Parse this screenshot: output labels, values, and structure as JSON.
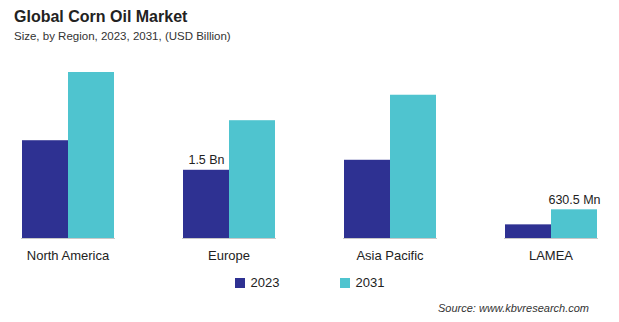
{
  "chart_data": {
    "type": "bar",
    "title": "Global Corn Oil Market",
    "subtitle": "Size, by Region, 2023, 2031, (USD Billion)",
    "categories": [
      "North America",
      "Europe",
      "Asia Pacific",
      "LAMEA"
    ],
    "series": [
      {
        "name": "2023",
        "color": "#2e3192",
        "values": [
          2.15,
          1.5,
          1.72,
          0.3
        ],
        "value_labels": [
          null,
          "1.5 Bn",
          null,
          null
        ]
      },
      {
        "name": "2031",
        "color": "#4fc4cf",
        "values": [
          3.65,
          2.59,
          3.15,
          0.6305
        ],
        "value_labels": [
          null,
          null,
          null,
          "630.5 Mn"
        ]
      }
    ],
    "data_labels": true,
    "tick_labels": "x",
    "grid": false,
    "legend": "bottom",
    "source": "Source: www.kbvresearch.com"
  }
}
